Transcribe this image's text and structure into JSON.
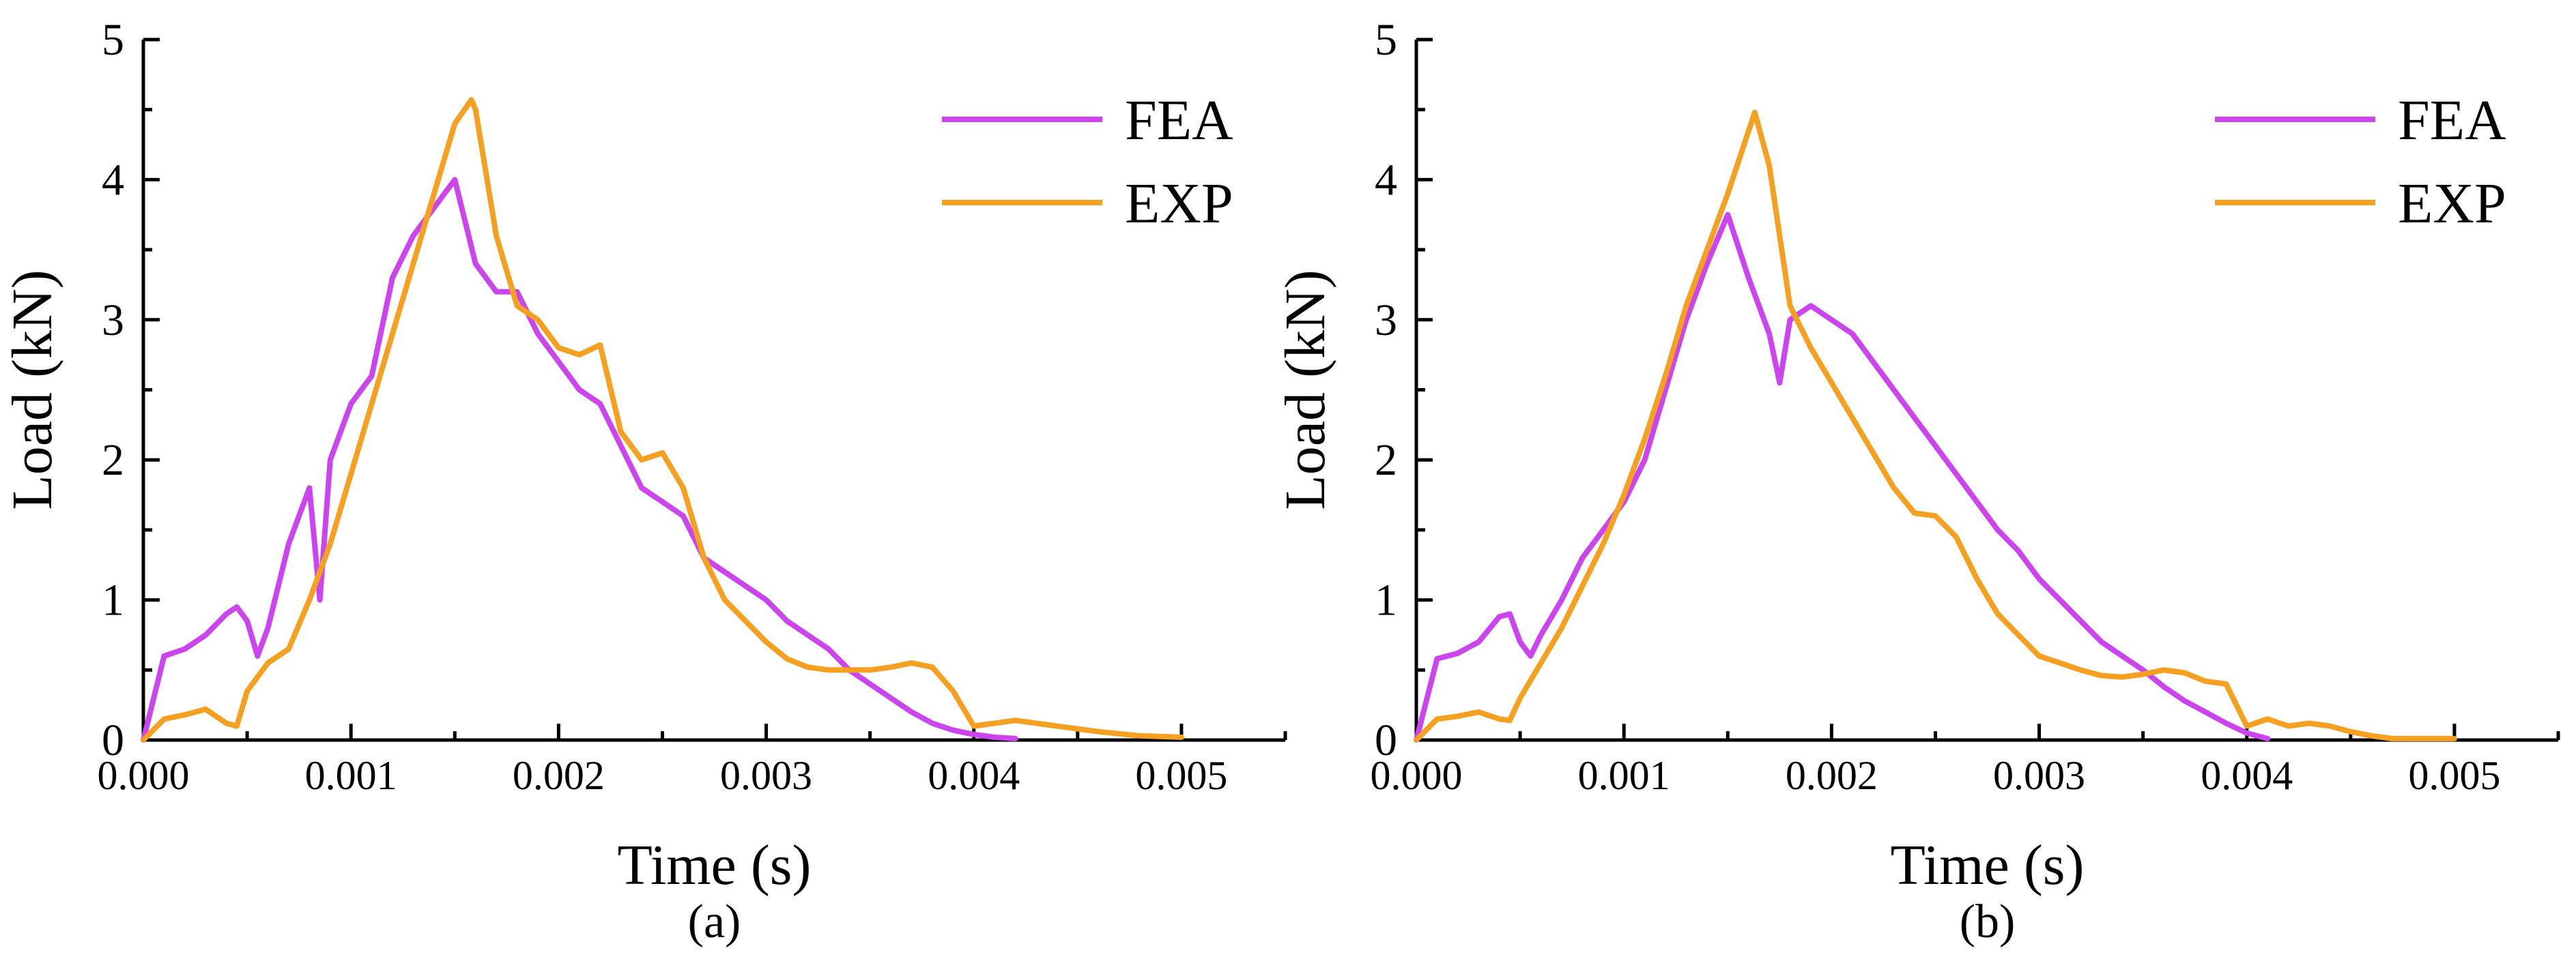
{
  "colors": {
    "fea": "#cc44ee",
    "exp": "#f5a021"
  },
  "chart_data": [
    {
      "type": "line",
      "panel_label": "(a)",
      "xlabel": "Time (s)",
      "ylabel": "Load (kN)",
      "xlim": [
        0,
        0.0055
      ],
      "ylim": [
        0,
        5
      ],
      "xticks": [
        0,
        0.001,
        0.002,
        0.003,
        0.004,
        0.005
      ],
      "xtick_labels": [
        "0.000",
        "0.001",
        "0.002",
        "0.003",
        "0.004",
        "0.005"
      ],
      "yticks": [
        0,
        1,
        2,
        3,
        4,
        5
      ],
      "ytick_labels": [
        "0",
        "1",
        "2",
        "3",
        "4",
        "5"
      ],
      "legend": [
        "FEA",
        "EXP"
      ],
      "series": [
        {
          "name": "FEA",
          "x": [
            0,
            0.0001,
            0.0002,
            0.0003,
            0.0004,
            0.00045,
            0.0005,
            0.00055,
            0.0006,
            0.0007,
            0.0008,
            0.00085,
            0.0009,
            0.001,
            0.0011,
            0.0012,
            0.0013,
            0.0014,
            0.0015,
            0.0016,
            0.0017,
            0.0018,
            0.0019,
            0.002,
            0.0021,
            0.0022,
            0.0023,
            0.0024,
            0.0025,
            0.0026,
            0.0027,
            0.0028,
            0.0029,
            0.003,
            0.0031,
            0.0032,
            0.0033,
            0.0034,
            0.0035,
            0.0036,
            0.0037,
            0.0038,
            0.0039,
            0.004,
            0.0041,
            0.0042
          ],
          "y": [
            0,
            0.6,
            0.65,
            0.75,
            0.9,
            0.95,
            0.85,
            0.6,
            0.8,
            1.4,
            1.8,
            1.0,
            2.0,
            2.4,
            2.6,
            3.3,
            3.6,
            3.8,
            4.0,
            3.4,
            3.2,
            3.2,
            2.9,
            2.7,
            2.5,
            2.4,
            2.1,
            1.8,
            1.7,
            1.6,
            1.3,
            1.2,
            1.1,
            1.0,
            0.85,
            0.75,
            0.65,
            0.5,
            0.4,
            0.3,
            0.2,
            0.12,
            0.07,
            0.04,
            0.02,
            0.01
          ]
        },
        {
          "name": "EXP",
          "x": [
            0,
            0.0001,
            0.0002,
            0.0003,
            0.0004,
            0.00045,
            0.0005,
            0.0006,
            0.0007,
            0.0008,
            0.0009,
            0.001,
            0.0011,
            0.0012,
            0.0013,
            0.0014,
            0.0015,
            0.00158,
            0.0016,
            0.0017,
            0.0018,
            0.0019,
            0.002,
            0.0021,
            0.0022,
            0.0023,
            0.0024,
            0.0025,
            0.0026,
            0.0027,
            0.0028,
            0.0029,
            0.003,
            0.0031,
            0.0032,
            0.0033,
            0.0034,
            0.0035,
            0.0036,
            0.0037,
            0.0038,
            0.0039,
            0.004,
            0.0041,
            0.0042,
            0.0044,
            0.0046,
            0.0048,
            0.005
          ],
          "y": [
            0,
            0.15,
            0.18,
            0.22,
            0.12,
            0.1,
            0.35,
            0.55,
            0.65,
            1.0,
            1.4,
            1.9,
            2.4,
            2.9,
            3.4,
            3.9,
            4.4,
            4.57,
            4.5,
            3.6,
            3.1,
            3.0,
            2.8,
            2.75,
            2.82,
            2.2,
            2.0,
            2.05,
            1.8,
            1.3,
            1.0,
            0.85,
            0.7,
            0.58,
            0.52,
            0.5,
            0.5,
            0.5,
            0.52,
            0.55,
            0.52,
            0.35,
            0.1,
            0.12,
            0.14,
            0.1,
            0.06,
            0.03,
            0.02
          ]
        }
      ]
    },
    {
      "type": "line",
      "panel_label": "(b)",
      "xlabel": "Time (s)",
      "ylabel": "Load (kN)",
      "xlim": [
        0,
        0.0055
      ],
      "ylim": [
        0,
        5
      ],
      "xticks": [
        0,
        0.001,
        0.002,
        0.003,
        0.004,
        0.005
      ],
      "xtick_labels": [
        "0.000",
        "0.001",
        "0.002",
        "0.003",
        "0.004",
        "0.005"
      ],
      "yticks": [
        0,
        1,
        2,
        3,
        4,
        5
      ],
      "ytick_labels": [
        "0",
        "1",
        "2",
        "3",
        "4",
        "5"
      ],
      "legend": [
        "FEA",
        "EXP"
      ],
      "series": [
        {
          "name": "FEA",
          "x": [
            0,
            0.0001,
            0.0002,
            0.0003,
            0.0004,
            0.00045,
            0.0005,
            0.00055,
            0.0006,
            0.0007,
            0.0008,
            0.0009,
            0.001,
            0.0011,
            0.0012,
            0.0013,
            0.0014,
            0.0015,
            0.0016,
            0.0017,
            0.00175,
            0.0018,
            0.0019,
            0.002,
            0.0021,
            0.0022,
            0.0023,
            0.0024,
            0.0025,
            0.0026,
            0.0027,
            0.0028,
            0.0029,
            0.003,
            0.0031,
            0.0032,
            0.0033,
            0.0034,
            0.0035,
            0.0036,
            0.0037,
            0.0038,
            0.0039,
            0.004,
            0.0041
          ],
          "y": [
            0,
            0.58,
            0.62,
            0.7,
            0.88,
            0.9,
            0.7,
            0.6,
            0.75,
            1.0,
            1.3,
            1.5,
            1.7,
            2.0,
            2.5,
            3.0,
            3.4,
            3.75,
            3.3,
            2.9,
            2.55,
            3.0,
            3.1,
            3.0,
            2.9,
            2.7,
            2.5,
            2.3,
            2.1,
            1.9,
            1.7,
            1.5,
            1.35,
            1.15,
            1.0,
            0.85,
            0.7,
            0.6,
            0.5,
            0.38,
            0.28,
            0.2,
            0.12,
            0.05,
            0.01
          ]
        },
        {
          "name": "EXP",
          "x": [
            0,
            0.0001,
            0.0002,
            0.0003,
            0.0004,
            0.00045,
            0.0005,
            0.0006,
            0.0007,
            0.0008,
            0.0009,
            0.001,
            0.0011,
            0.0012,
            0.0013,
            0.0014,
            0.0015,
            0.00163,
            0.0017,
            0.0018,
            0.0019,
            0.002,
            0.0021,
            0.0022,
            0.0023,
            0.0024,
            0.0025,
            0.0026,
            0.0027,
            0.0028,
            0.0029,
            0.003,
            0.0031,
            0.0032,
            0.0033,
            0.0034,
            0.0035,
            0.0036,
            0.0037,
            0.0038,
            0.0039,
            0.004,
            0.0041,
            0.0042,
            0.0043,
            0.0044,
            0.0045,
            0.0046,
            0.0047,
            0.005
          ],
          "y": [
            0,
            0.15,
            0.17,
            0.2,
            0.15,
            0.14,
            0.3,
            0.55,
            0.8,
            1.1,
            1.4,
            1.75,
            2.15,
            2.6,
            3.1,
            3.5,
            3.9,
            4.48,
            4.1,
            3.1,
            2.8,
            2.55,
            2.3,
            2.05,
            1.8,
            1.62,
            1.6,
            1.45,
            1.15,
            0.9,
            0.75,
            0.6,
            0.55,
            0.5,
            0.46,
            0.45,
            0.47,
            0.5,
            0.48,
            0.42,
            0.4,
            0.1,
            0.15,
            0.1,
            0.12,
            0.1,
            0.06,
            0.03,
            0.01,
            0.01
          ]
        }
      ]
    }
  ]
}
